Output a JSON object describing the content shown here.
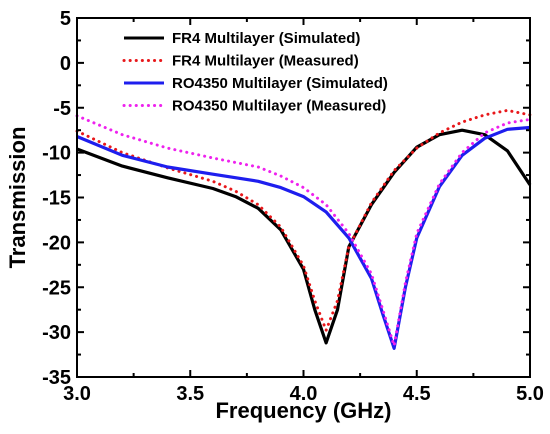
{
  "chart_data": {
    "type": "line",
    "xlabel": "Frequency (GHz)",
    "ylabel": "Transmission",
    "xlim": [
      3.0,
      5.0
    ],
    "ylim": [
      -35,
      5
    ],
    "xticks": [
      "3.0",
      "3.5",
      "4.0",
      "4.5",
      "5.0"
    ],
    "xtick_values": [
      3.0,
      3.5,
      4.0,
      4.5,
      5.0
    ],
    "yticks": [
      "5",
      "0",
      "-5",
      "-10",
      "-15",
      "-20",
      "-25",
      "-30",
      "-35"
    ],
    "ytick_values": [
      5,
      0,
      -5,
      -10,
      -15,
      -20,
      -25,
      -30,
      -35
    ],
    "grid": false,
    "legend_position": "top-right",
    "series": [
      {
        "name": "FR4 Multilayer (Simulated)",
        "color": "#000000",
        "style": "solid",
        "x": [
          3.0,
          3.2,
          3.4,
          3.6,
          3.7,
          3.8,
          3.9,
          4.0,
          4.05,
          4.1,
          4.15,
          4.2,
          4.3,
          4.4,
          4.5,
          4.6,
          4.7,
          4.8,
          4.9,
          5.0
        ],
        "y": [
          -9.6,
          -11.5,
          -12.8,
          -14.0,
          -14.9,
          -16.2,
          -18.6,
          -23.0,
          -27.5,
          -31.2,
          -27.5,
          -20.5,
          -15.8,
          -12.2,
          -9.4,
          -8.0,
          -7.5,
          -8.0,
          -9.8,
          -13.6
        ]
      },
      {
        "name": "FR4 Multilayer (Measured)",
        "color": "#e8181b",
        "style": "dotted",
        "x": [
          3.0,
          3.2,
          3.4,
          3.6,
          3.7,
          3.8,
          3.9,
          4.0,
          4.05,
          4.1,
          4.15,
          4.2,
          4.3,
          4.4,
          4.5,
          4.6,
          4.7,
          4.8,
          4.9,
          5.0
        ],
        "y": [
          -7.6,
          -10.0,
          -11.7,
          -13.2,
          -14.3,
          -15.8,
          -18.3,
          -22.6,
          -26.5,
          -29.8,
          -26.5,
          -20.5,
          -15.6,
          -12.0,
          -9.5,
          -7.8,
          -6.6,
          -5.8,
          -5.3,
          -5.8
        ]
      },
      {
        "name": "RO4350 Multilayer (Simulated)",
        "color": "#1e1eee",
        "style": "solid",
        "x": [
          3.0,
          3.2,
          3.4,
          3.6,
          3.8,
          3.9,
          4.0,
          4.1,
          4.2,
          4.3,
          4.35,
          4.4,
          4.45,
          4.5,
          4.6,
          4.7,
          4.8,
          4.9,
          5.0
        ],
        "y": [
          -8.2,
          -10.3,
          -11.6,
          -12.4,
          -13.2,
          -13.9,
          -14.9,
          -16.6,
          -19.5,
          -24.0,
          -28.0,
          -31.8,
          -25.0,
          -19.5,
          -13.8,
          -10.3,
          -8.4,
          -7.4,
          -7.2
        ]
      },
      {
        "name": "RO4350 Multilayer (Measured)",
        "color": "#ee22ee",
        "style": "dotted",
        "x": [
          3.0,
          3.2,
          3.4,
          3.6,
          3.8,
          3.9,
          4.0,
          4.1,
          4.2,
          4.3,
          4.35,
          4.4,
          4.45,
          4.5,
          4.6,
          4.7,
          4.8,
          4.9,
          5.0
        ],
        "y": [
          -5.9,
          -8.0,
          -9.5,
          -10.6,
          -11.6,
          -12.6,
          -13.9,
          -15.8,
          -19.0,
          -23.5,
          -27.5,
          -31.5,
          -24.5,
          -19.0,
          -13.5,
          -10.0,
          -7.8,
          -6.7,
          -6.3
        ]
      }
    ]
  }
}
